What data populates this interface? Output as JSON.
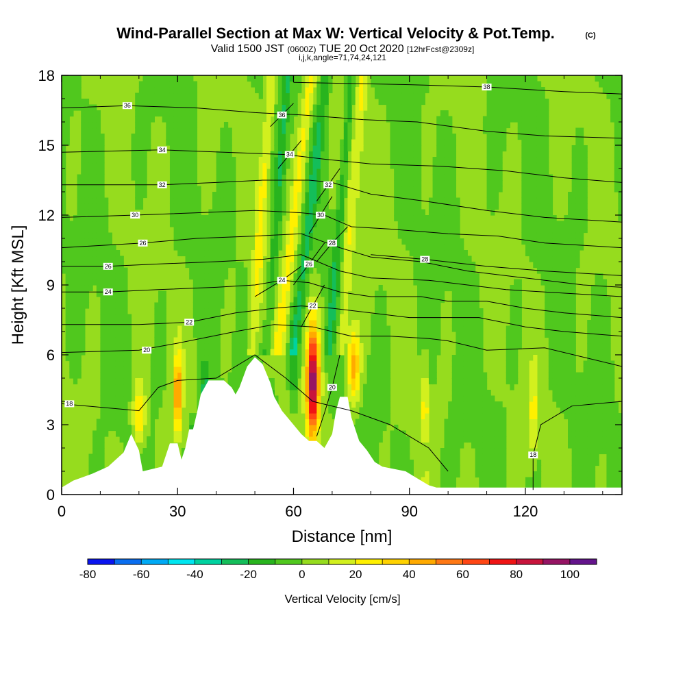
{
  "header": {
    "title": "Wind-Parallel Section at Max W: Vertical Velocity & Pot.Temp.",
    "copyright": "(C)",
    "valid_prefix": "Valid 1500 JST",
    "valid_utc": "(0600Z)",
    "valid_date": "TUE 20 Oct 2020",
    "forecast": "[12hrFcst@2309z]",
    "indices": "i,j,k,angle=71,74,24,121"
  },
  "chart_data": {
    "type": "heatmap",
    "title": "Wind-Parallel Section at Max W: Vertical Velocity & Pot.Temp.",
    "xlabel": "Distance [nm]",
    "ylabel": "Height [Kft MSL]",
    "xlim": [
      0,
      145
    ],
    "ylim": [
      0,
      18
    ],
    "x_ticks": [
      0,
      30,
      60,
      90,
      120
    ],
    "y_ticks": [
      0,
      3,
      6,
      9,
      12,
      15,
      18
    ],
    "grid": false,
    "colorbar": {
      "label": "Vertical Velocity [cm/s]",
      "tick_labels": [
        "-80",
        "-60",
        "-40",
        "-20",
        "0",
        "20",
        "40",
        "60",
        "80",
        "100"
      ],
      "levels": [
        -80,
        -70,
        -60,
        -50,
        -40,
        -30,
        -20,
        -10,
        0,
        10,
        20,
        30,
        40,
        50,
        60,
        70,
        80,
        90,
        100
      ],
      "colors": [
        "#0a14f0",
        "#0a6ef0",
        "#00aaf5",
        "#00e6f0",
        "#00d2a0",
        "#14be5a",
        "#28b41e",
        "#50c81e",
        "#96dc1e",
        "#d2f01e",
        "#fff000",
        "#ffd200",
        "#ffaa00",
        "#ff7814",
        "#ff4614",
        "#f01414",
        "#c8143c",
        "#961464",
        "#64148c"
      ]
    },
    "theta_contours": [
      {
        "label": "18",
        "label_at": [
          2,
          3.9
        ],
        "points": [
          [
            0,
            3.9
          ],
          [
            20,
            3.6
          ],
          [
            25,
            4.6
          ],
          [
            30,
            4.9
          ],
          [
            40,
            5.0
          ],
          [
            50,
            6.0
          ],
          [
            58,
            5.0
          ],
          [
            65,
            4.0
          ],
          [
            75,
            3.6
          ],
          [
            85,
            3.0
          ],
          [
            95,
            2.0
          ],
          [
            100,
            1.0
          ]
        ]
      },
      {
        "label": "18",
        "label_at": [
          122,
          1.7
        ],
        "points": [
          [
            122,
            0.2
          ],
          [
            122,
            1.7
          ],
          [
            124,
            3.0
          ],
          [
            132,
            3.8
          ],
          [
            145,
            4.0
          ]
        ]
      },
      {
        "label": "20",
        "label_at": [
          22,
          6.2
        ],
        "points": [
          [
            0,
            6.1
          ],
          [
            20,
            6.2
          ],
          [
            30,
            6.5
          ],
          [
            45,
            7.0
          ],
          [
            55,
            7.3
          ],
          [
            65,
            7.2
          ],
          [
            75,
            6.8
          ],
          [
            85,
            6.8
          ],
          [
            95,
            6.7
          ],
          [
            100,
            6.6
          ],
          [
            110,
            6.2
          ],
          [
            125,
            6.3
          ],
          [
            135,
            5.9
          ],
          [
            145,
            5.5
          ]
        ]
      },
      {
        "label": "20",
        "label_at": [
          70,
          4.6
        ],
        "points": [
          [
            66,
            2.5
          ],
          [
            68,
            3.5
          ],
          [
            70,
            4.6
          ],
          [
            72,
            6.0
          ]
        ]
      },
      {
        "label": "22",
        "label_at": [
          33,
          7.4
        ],
        "points": [
          [
            0,
            7.3
          ],
          [
            20,
            7.3
          ],
          [
            33,
            7.4
          ],
          [
            45,
            7.8
          ],
          [
            55,
            8.0
          ],
          [
            62,
            8.1
          ],
          [
            70,
            8.0
          ],
          [
            80,
            7.8
          ],
          [
            90,
            7.6
          ],
          [
            100,
            7.6
          ],
          [
            108,
            7.6
          ],
          [
            120,
            7.2
          ],
          [
            130,
            7.0
          ],
          [
            145,
            6.8
          ]
        ]
      },
      {
        "label": "22",
        "label_at": [
          65,
          8.1
        ],
        "points": [
          [
            62,
            7.2
          ],
          [
            65,
            8.1
          ],
          [
            68,
            9.0
          ]
        ]
      },
      {
        "label": "24",
        "label_at": [
          12,
          8.7
        ],
        "points": [
          [
            0,
            8.7
          ],
          [
            12,
            8.7
          ],
          [
            25,
            8.8
          ],
          [
            40,
            8.9
          ],
          [
            50,
            9.0
          ],
          [
            57,
            9.2
          ],
          [
            64,
            9.1
          ],
          [
            72,
            8.7
          ],
          [
            80,
            8.5
          ],
          [
            93,
            8.5
          ],
          [
            100,
            8.3
          ],
          [
            110,
            8.3
          ],
          [
            120,
            8.0
          ],
          [
            130,
            7.8
          ],
          [
            145,
            7.6
          ]
        ]
      },
      {
        "label": "24",
        "label_at": [
          57,
          9.2
        ],
        "points": [
          [
            50,
            8.5
          ],
          [
            57,
            9.2
          ],
          [
            62,
            9.8
          ]
        ]
      },
      {
        "label": "26",
        "label_at": [
          12,
          9.8
        ],
        "points": [
          [
            0,
            9.8
          ],
          [
            12,
            9.8
          ],
          [
            25,
            9.9
          ],
          [
            40,
            10.0
          ],
          [
            52,
            10.1
          ],
          [
            62,
            10.3
          ],
          [
            72,
            9.6
          ],
          [
            80,
            9.3
          ],
          [
            95,
            9.2
          ],
          [
            105,
            9.0
          ],
          [
            115,
            8.8
          ],
          [
            125,
            8.7
          ],
          [
            135,
            8.6
          ],
          [
            145,
            8.5
          ]
        ]
      },
      {
        "label": "26",
        "label_at": [
          64,
          9.9
        ],
        "points": [
          [
            60,
            9.0
          ],
          [
            64,
            9.9
          ],
          [
            68,
            10.8
          ]
        ]
      },
      {
        "label": "26",
        "label_at": [
          21,
          10.8
        ],
        "points": [
          [
            0,
            10.6
          ],
          [
            21,
            10.8
          ],
          [
            35,
            11.0
          ],
          [
            50,
            11.1
          ],
          [
            62,
            11.2
          ],
          [
            72,
            10.6
          ],
          [
            80,
            10.2
          ],
          [
            93,
            10.0
          ],
          [
            105,
            9.6
          ],
          [
            120,
            9.3
          ],
          [
            135,
            9.0
          ],
          [
            145,
            8.9
          ]
        ]
      },
      {
        "label": "28",
        "label_at": [
          70,
          10.8
        ],
        "points": [
          [
            66,
            10.0
          ],
          [
            70,
            10.8
          ],
          [
            74,
            11.5
          ]
        ]
      },
      {
        "label": "28",
        "label_at": [
          94,
          10.1
        ],
        "points": [
          [
            80,
            10.3
          ],
          [
            94,
            10.1
          ],
          [
            110,
            9.8
          ],
          [
            125,
            9.6
          ],
          [
            145,
            9.4
          ]
        ]
      },
      {
        "label": "30",
        "label_at": [
          19,
          12.0
        ],
        "points": [
          [
            0,
            11.9
          ],
          [
            19,
            12.0
          ],
          [
            35,
            12.1
          ],
          [
            50,
            12.2
          ],
          [
            62,
            12.1
          ],
          [
            68,
            12.0
          ],
          [
            75,
            11.5
          ],
          [
            85,
            11.4
          ],
          [
            100,
            11.2
          ],
          [
            113,
            11.1
          ],
          [
            125,
            10.8
          ],
          [
            145,
            10.6
          ]
        ]
      },
      {
        "label": "30",
        "label_at": [
          67,
          12.0
        ],
        "points": [
          [
            64,
            11.2
          ],
          [
            67,
            12.0
          ],
          [
            70,
            12.8
          ]
        ]
      },
      {
        "label": "32",
        "label_at": [
          26,
          13.3
        ],
        "points": [
          [
            0,
            13.3
          ],
          [
            26,
            13.3
          ],
          [
            40,
            13.4
          ],
          [
            52,
            13.5
          ],
          [
            64,
            13.5
          ],
          [
            70,
            13.4
          ],
          [
            80,
            12.9
          ],
          [
            94,
            12.6
          ],
          [
            110,
            12.2
          ],
          [
            125,
            11.9
          ],
          [
            145,
            11.7
          ]
        ]
      },
      {
        "label": "32",
        "label_at": [
          69,
          13.3
        ],
        "points": [
          [
            66,
            12.6
          ],
          [
            69,
            13.3
          ],
          [
            72,
            14.0
          ]
        ]
      },
      {
        "label": "34",
        "label_at": [
          26,
          14.8
        ],
        "points": [
          [
            0,
            14.7
          ],
          [
            26,
            14.8
          ],
          [
            42,
            14.7
          ],
          [
            58,
            14.6
          ],
          [
            68,
            14.4
          ],
          [
            80,
            14.2
          ],
          [
            98,
            14.1
          ],
          [
            115,
            13.9
          ],
          [
            130,
            13.6
          ],
          [
            145,
            13.4
          ]
        ]
      },
      {
        "label": "34",
        "label_at": [
          59,
          14.6
        ],
        "points": [
          [
            56,
            14.0
          ],
          [
            59,
            14.6
          ],
          [
            62,
            15.2
          ]
        ]
      },
      {
        "label": "36",
        "label_at": [
          17,
          16.7
        ],
        "points": [
          [
            0,
            16.6
          ],
          [
            17,
            16.7
          ],
          [
            35,
            16.6
          ],
          [
            50,
            16.4
          ],
          [
            62,
            16.3
          ],
          [
            78,
            16.1
          ],
          [
            92,
            16.0
          ],
          [
            110,
            15.6
          ],
          [
            125,
            15.4
          ],
          [
            145,
            15.3
          ]
        ]
      },
      {
        "label": "36",
        "label_at": [
          57,
          16.3
        ],
        "points": [
          [
            54,
            15.8
          ],
          [
            57,
            16.3
          ],
          [
            60,
            16.8
          ]
        ]
      },
      {
        "label": "38",
        "label_at": [
          110,
          17.5
        ],
        "points": [
          [
            60,
            17.7
          ],
          [
            90,
            17.6
          ],
          [
            110,
            17.5
          ],
          [
            130,
            17.3
          ],
          [
            145,
            17.2
          ]
        ]
      }
    ],
    "terrain": [
      [
        0,
        0.3
      ],
      [
        3,
        0.6
      ],
      [
        8,
        0.9
      ],
      [
        12,
        1.2
      ],
      [
        16,
        1.8
      ],
      [
        18,
        2.6
      ],
      [
        20,
        1.9
      ],
      [
        21,
        1.0
      ],
      [
        26,
        1.2
      ],
      [
        28,
        2.2
      ],
      [
        30,
        2.2
      ],
      [
        31,
        1.5
      ],
      [
        32,
        2.0
      ],
      [
        33,
        2.8
      ],
      [
        34,
        2.8
      ],
      [
        35,
        3.5
      ],
      [
        36,
        4.3
      ],
      [
        38,
        4.9
      ],
      [
        42,
        4.9
      ],
      [
        44,
        4.6
      ],
      [
        45,
        4.3
      ],
      [
        46,
        4.6
      ],
      [
        48,
        5.5
      ],
      [
        50,
        5.9
      ],
      [
        52,
        5.6
      ],
      [
        54,
        4.8
      ],
      [
        55,
        4.2
      ],
      [
        57,
        3.6
      ],
      [
        60,
        3.0
      ],
      [
        62,
        2.6
      ],
      [
        64,
        2.3
      ],
      [
        66,
        2.3
      ],
      [
        68,
        2.0
      ],
      [
        70,
        2.6
      ],
      [
        71,
        3.6
      ],
      [
        72,
        4.2
      ],
      [
        74,
        4.2
      ],
      [
        75,
        3.3
      ],
      [
        77,
        2.3
      ],
      [
        79,
        1.9
      ],
      [
        81,
        1.4
      ],
      [
        83,
        1.2
      ],
      [
        86,
        1.1
      ],
      [
        89,
        1.0
      ],
      [
        92,
        0.7
      ],
      [
        95,
        0.4
      ],
      [
        97,
        0.3
      ],
      [
        145,
        0.3
      ]
    ]
  }
}
